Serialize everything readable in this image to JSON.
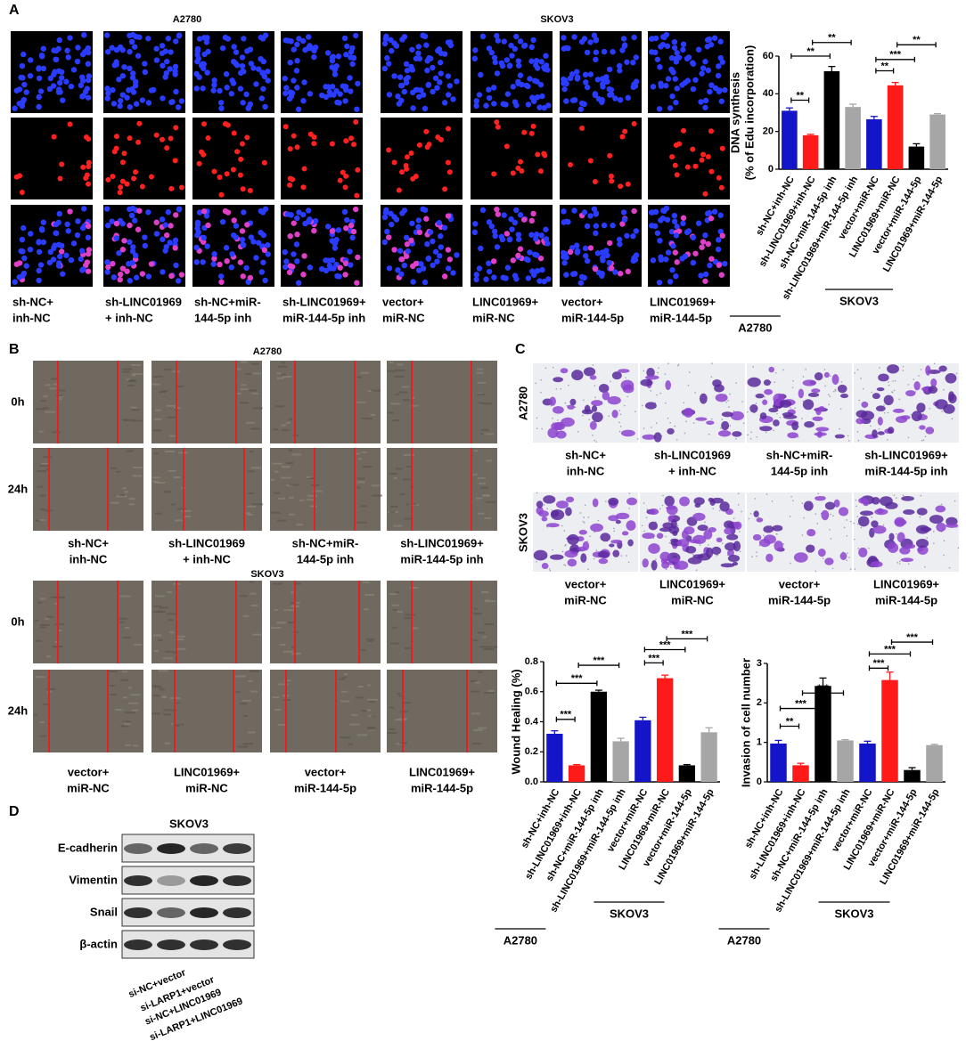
{
  "panel_labels": [
    "A",
    "B",
    "C",
    "D"
  ],
  "conditions": [
    [
      "sh-NC+",
      "inh-NC"
    ],
    [
      "sh-LINC01969",
      "+ inh-NC"
    ],
    [
      "sh-NC+miR-",
      "144-5p inh"
    ],
    [
      "sh-LINC01969+",
      "miR-144-5p inh"
    ],
    [
      "vector+",
      "miR-NC"
    ],
    [
      "LINC01969+",
      "miR-NC"
    ],
    [
      "vector+",
      "miR-144-5p"
    ],
    [
      "LINC01969+",
      "miR-144-5p"
    ]
  ],
  "panel_a": {
    "groups": [
      "A2780",
      "SKOV3"
    ]
  },
  "panel_b": {
    "groups": [
      "A2780",
      "SKOV3"
    ],
    "times": [
      "0h",
      "24h"
    ]
  },
  "panel_c": {
    "rows": [
      "A2780",
      "SKOV3"
    ]
  },
  "panel_d": {
    "title": "SKOV3",
    "proteins": [
      "E-cadherin",
      "Vimentin",
      "Snail",
      "β-actin"
    ],
    "lanes": [
      "si-NC+vector",
      "si-LARP1+vector",
      "si-NC+LINC01969",
      "si-LARP1+LINC01969"
    ]
  },
  "chart_data": [
    {
      "type": "bar",
      "ylabel": [
        "DNA synthesis",
        "(% of Edu incorporation)"
      ],
      "categories": [
        "sh-NC+inh-NC",
        "sh-LINC01969+inh-NC",
        "sh-NC+miR-144-5p inh",
        "sh-LINC01969+miR-144-5p inh",
        "vector+miR-NC",
        "LINC01969+miR-NC",
        "vector+miR-144-5p",
        "LINC01969+miR-144-5p"
      ],
      "groups": [
        "A2780",
        "SKOV3"
      ],
      "values": [
        31,
        18,
        52,
        33,
        26.5,
        44.5,
        12,
        29
      ],
      "errors": [
        1.5,
        0.5,
        2.5,
        1.5,
        1.5,
        1.5,
        1.5,
        0.5
      ],
      "colors": [
        "#1414c8",
        "#ff1a1a",
        "#000000",
        "#a6a6a6",
        "#1414c8",
        "#ff1a1a",
        "#000000",
        "#a6a6a6"
      ],
      "ylim": [
        0,
        60
      ],
      "yticks": [
        0,
        20,
        40,
        60
      ],
      "annotations": [
        "**",
        "**",
        "**",
        "**",
        "***",
        "**"
      ]
    },
    {
      "type": "bar",
      "ylabel": [
        "Wound Healing (%)"
      ],
      "categories": [
        "sh-NC+inh-NC",
        "sh-LINC01969+inh-NC",
        "sh-NC+miR-144-5p inh",
        "sh-LINC01969+miR-144-5p inh",
        "vector+miR-NC",
        "LINC01969+miR-NC",
        "vector+miR-144-5p",
        "LINC01969+miR-144-5p"
      ],
      "groups": [
        "A2780",
        "SKOV3"
      ],
      "values": [
        0.32,
        0.11,
        0.6,
        0.27,
        0.41,
        0.69,
        0.11,
        0.33
      ],
      "errors": [
        0.02,
        0.005,
        0.01,
        0.02,
        0.02,
        0.02,
        0.005,
        0.03
      ],
      "colors": [
        "#1414c8",
        "#ff1a1a",
        "#000000",
        "#a6a6a6",
        "#1414c8",
        "#ff1a1a",
        "#000000",
        "#a6a6a6"
      ],
      "ylim": [
        0,
        0.8
      ],
      "yticks": [
        {
          "value": 0,
          "label": "0.0"
        },
        0.2,
        0.4,
        0.6,
        0.8
      ],
      "annotations": [
        "***",
        "***",
        "***",
        "***",
        "***",
        "***"
      ]
    },
    {
      "type": "bar",
      "ylabel": [
        "Invasion of cell number"
      ],
      "categories": [
        "sh-NC+inh-NC",
        "sh-LINC01969+inh-NC",
        "sh-NC+miR-144-5p inh",
        "sh-LINC01969+miR-144-5p inh",
        "vector+miR-NC",
        "LINC01969+miR-NC",
        "vector+miR-144-5p",
        "LINC01969+miR-144-5p"
      ],
      "groups": [
        "A2780",
        "SKOV3"
      ],
      "values": [
        0.97,
        0.42,
        2.43,
        1.05,
        0.97,
        2.58,
        0.3,
        0.93
      ],
      "errors": [
        0.08,
        0.05,
        0.2,
        0.02,
        0.06,
        0.2,
        0.06,
        0.02
      ],
      "colors": [
        "#1414c8",
        "#ff1a1a",
        "#000000",
        "#a6a6a6",
        "#1414c8",
        "#ff1a1a",
        "#000000",
        "#a6a6a6"
      ],
      "ylim": [
        0,
        3
      ],
      "yticks": [
        0,
        1,
        2,
        3
      ],
      "annotations": [
        "**",
        "***",
        "***",
        "***",
        "***",
        "***"
      ]
    }
  ]
}
